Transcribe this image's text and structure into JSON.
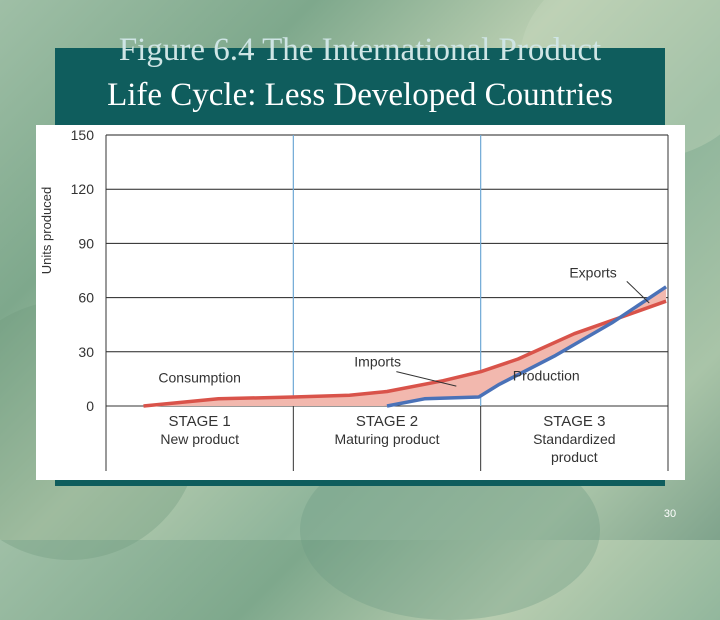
{
  "slide": {
    "title_line1": "Figure 6.4 The International Product",
    "title_line2": "Life Cycle: Less Developed Countries",
    "page_number": "30"
  },
  "chart_data": {
    "type": "line",
    "title": "",
    "ylabel": "Units produced",
    "xlabel": "",
    "ylim": [
      0,
      150
    ],
    "yticks": [
      0,
      30,
      60,
      90,
      120,
      150
    ],
    "ytick_labels": [
      "0",
      "30",
      "60",
      "90",
      "120",
      "150"
    ],
    "xlim": [
      0,
      3
    ],
    "grid": true,
    "stages": [
      {
        "label": "STAGE 1",
        "sub": "New product"
      },
      {
        "label": "STAGE 2",
        "sub": "Maturing product"
      },
      {
        "label": "STAGE 3",
        "sub": "Standardized product"
      }
    ],
    "series": [
      {
        "name": "Consumption",
        "color": "#d9534a",
        "x": [
          0.2,
          0.6,
          1.0,
          1.3,
          1.5,
          1.8,
          2.0,
          2.2,
          2.5,
          2.8,
          2.99
        ],
        "y": [
          0,
          4,
          5,
          6,
          8,
          14,
          19,
          26,
          40,
          51,
          58
        ]
      },
      {
        "name": "Production",
        "color": "#4a72b8",
        "x": [
          1.5,
          1.7,
          1.99,
          2.1,
          2.4,
          2.7,
          2.99
        ],
        "y": [
          0,
          4,
          5,
          12,
          28,
          46,
          66
        ]
      }
    ],
    "fill_color": "#f2b8ae",
    "annotations": [
      {
        "text": "Consumption",
        "x": 0.5,
        "y": 13
      },
      {
        "text": "Imports",
        "x": 1.45,
        "y": 22
      },
      {
        "text": "Production",
        "x": 2.35,
        "y": 14
      },
      {
        "text": "Exports",
        "x": 2.6,
        "y": 71
      }
    ]
  }
}
